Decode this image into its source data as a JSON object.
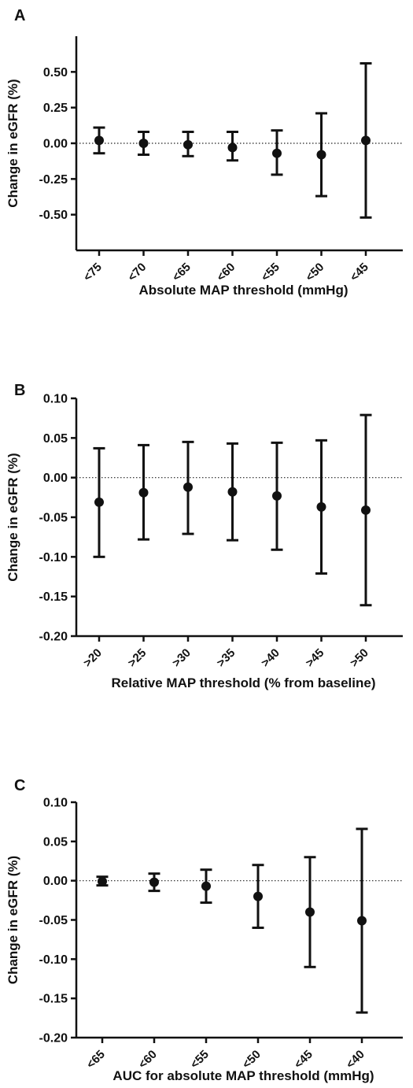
{
  "chart_data": [
    {
      "type": "scatter",
      "panel_label": "A",
      "ylabel": "Change in eGFR (%)",
      "xlabel": "Absolute MAP threshold (mmHg)",
      "ylim": [
        -0.75,
        0.75
      ],
      "yticks": [
        -0.5,
        -0.25,
        0.0,
        0.25,
        0.5
      ],
      "ytick_labels": [
        "-0.50",
        "-0.25",
        "0.00",
        "0.25",
        "0.50"
      ],
      "categories": [
        "<75",
        "<70",
        "<65",
        "<60",
        "<55",
        "<50",
        "<45"
      ],
      "series": [
        {
          "values": [
            0.02,
            0.0,
            -0.01,
            -0.03,
            -0.07,
            -0.08,
            0.02
          ],
          "lower": [
            -0.07,
            -0.08,
            -0.09,
            -0.12,
            -0.22,
            -0.37,
            -0.52
          ],
          "upper": [
            0.11,
            0.08,
            0.08,
            0.08,
            0.09,
            0.21,
            0.56
          ]
        }
      ],
      "reference_line": 0.0,
      "grid": false
    },
    {
      "type": "scatter",
      "panel_label": "B",
      "ylabel": "Change in eGFR (%)",
      "xlabel": "Relative MAP threshold (% from baseline)",
      "ylim": [
        -0.2,
        0.1
      ],
      "yticks": [
        -0.2,
        -0.15,
        -0.1,
        -0.05,
        0.0,
        0.05,
        0.1
      ],
      "ytick_labels": [
        "-0.20",
        "-0.15",
        "-0.10",
        "-0.05",
        "0.00",
        "0.05",
        "0.10"
      ],
      "categories": [
        ">20",
        ">25",
        ">30",
        ">35",
        ">40",
        ">45",
        ">50"
      ],
      "series": [
        {
          "values": [
            -0.031,
            -0.019,
            -0.012,
            -0.018,
            -0.023,
            -0.037,
            -0.041
          ],
          "lower": [
            -0.1,
            -0.078,
            -0.071,
            -0.079,
            -0.091,
            -0.121,
            -0.161
          ],
          "upper": [
            0.037,
            0.041,
            0.045,
            0.043,
            0.044,
            0.047,
            0.079
          ]
        }
      ],
      "reference_line": 0.0,
      "grid": false
    },
    {
      "type": "scatter",
      "panel_label": "C",
      "ylabel": "Change in eGFR (%)",
      "xlabel": "AUC for absolute MAP threshold (mmHg)",
      "ylim": [
        -0.2,
        0.1
      ],
      "yticks": [
        -0.2,
        -0.15,
        -0.1,
        -0.05,
        0.0,
        0.05,
        0.1
      ],
      "ytick_labels": [
        "-0.20",
        "-0.15",
        "-0.10",
        "-0.05",
        "0.00",
        "0.05",
        "0.10"
      ],
      "categories": [
        "<65",
        "<60",
        "<55",
        "<50",
        "<45",
        "<40"
      ],
      "series": [
        {
          "values": [
            -0.001,
            -0.002,
            -0.007,
            -0.02,
            -0.04,
            -0.051
          ],
          "lower": [
            -0.006,
            -0.013,
            -0.028,
            -0.06,
            -0.11,
            -0.168
          ],
          "upper": [
            0.005,
            0.009,
            0.014,
            0.02,
            0.03,
            0.066
          ]
        }
      ],
      "reference_line": 0.0,
      "grid": false
    }
  ]
}
